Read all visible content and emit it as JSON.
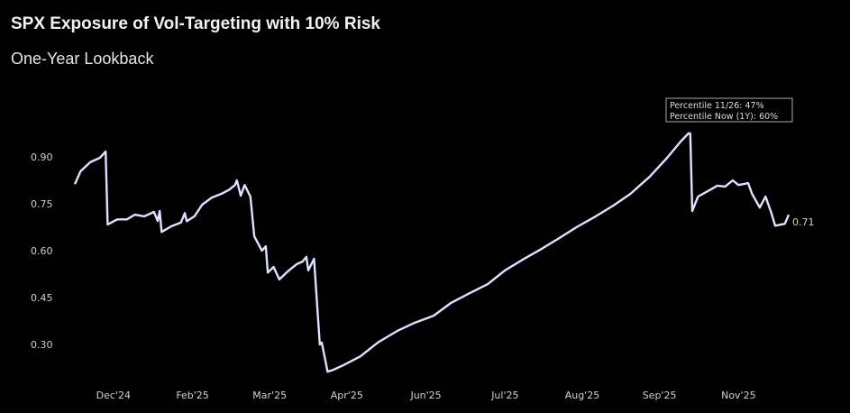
{
  "chart_data": {
    "type": "line",
    "title": "SPX Exposure of Vol-Targeting with 10% Risk",
    "subtitle": "One-Year Lookback",
    "xlabel": "",
    "ylabel": "",
    "ylim": [
      0.18,
      1.0
    ],
    "xlim": [
      0,
      370
    ],
    "grid": false,
    "line_color": "#dfe2ff",
    "y_ticks": [
      0.9,
      0.75,
      0.6,
      0.45,
      0.3
    ],
    "y_tick_labels": [
      "0.90",
      "0.75",
      "0.60",
      "0.45",
      "0.30"
    ],
    "x_ticks": [
      {
        "day": 20,
        "label": "Dec'24"
      },
      {
        "day": 61,
        "label": "Feb'25"
      },
      {
        "day": 101,
        "label": "Mar'25"
      },
      {
        "day": 141,
        "label": "Apr'25"
      },
      {
        "day": 182,
        "label": "Jun'25"
      },
      {
        "day": 223,
        "label": "Jul'25"
      },
      {
        "day": 263,
        "label": "Aug'25"
      },
      {
        "day": 303,
        "label": "Sep'25"
      },
      {
        "day": 344,
        "label": "Nov'25"
      }
    ],
    "series": [
      {
        "name": "SPX Exposure",
        "points": [
          [
            0,
            0.813
          ],
          [
            3,
            0.854
          ],
          [
            8,
            0.883
          ],
          [
            13,
            0.897
          ],
          [
            16,
            0.917
          ],
          [
            17,
            0.684
          ],
          [
            22,
            0.7
          ],
          [
            27,
            0.7
          ],
          [
            31,
            0.715
          ],
          [
            36,
            0.71
          ],
          [
            41,
            0.724
          ],
          [
            43,
            0.695
          ],
          [
            44,
            0.727
          ],
          [
            45,
            0.66
          ],
          [
            50,
            0.678
          ],
          [
            55,
            0.69
          ],
          [
            57,
            0.72
          ],
          [
            58,
            0.694
          ],
          [
            62,
            0.71
          ],
          [
            66,
            0.747
          ],
          [
            71,
            0.77
          ],
          [
            76,
            0.782
          ],
          [
            80,
            0.795
          ],
          [
            83,
            0.81
          ],
          [
            84,
            0.825
          ],
          [
            86,
            0.776
          ],
          [
            88,
            0.81
          ],
          [
            91,
            0.773
          ],
          [
            93,
            0.646
          ],
          [
            97,
            0.6
          ],
          [
            99,
            0.614
          ],
          [
            100,
            0.53
          ],
          [
            103,
            0.548
          ],
          [
            106,
            0.508
          ],
          [
            111,
            0.537
          ],
          [
            115,
            0.557
          ],
          [
            118,
            0.565
          ],
          [
            120,
            0.58
          ],
          [
            121,
            0.537
          ],
          [
            124,
            0.574
          ],
          [
            127,
            0.3
          ],
          [
            128,
            0.306
          ],
          [
            131,
            0.213
          ],
          [
            134,
            0.219
          ],
          [
            139,
            0.233
          ],
          [
            148,
            0.262
          ],
          [
            157,
            0.306
          ],
          [
            167,
            0.343
          ],
          [
            176,
            0.369
          ],
          [
            186,
            0.392
          ],
          [
            195,
            0.433
          ],
          [
            204,
            0.462
          ],
          [
            214,
            0.493
          ],
          [
            223,
            0.537
          ],
          [
            232,
            0.571
          ],
          [
            242,
            0.606
          ],
          [
            251,
            0.64
          ],
          [
            260,
            0.675
          ],
          [
            270,
            0.71
          ],
          [
            279,
            0.744
          ],
          [
            288,
            0.782
          ],
          [
            298,
            0.837
          ],
          [
            307,
            0.897
          ],
          [
            314,
            0.949
          ],
          [
            318,
            0.975
          ],
          [
            319,
            0.975
          ],
          [
            320,
            0.727
          ],
          [
            323,
            0.773
          ],
          [
            328,
            0.79
          ],
          [
            333,
            0.808
          ],
          [
            337,
            0.805
          ],
          [
            341,
            0.825
          ],
          [
            344,
            0.81
          ],
          [
            349,
            0.816
          ],
          [
            351,
            0.782
          ],
          [
            355,
            0.738
          ],
          [
            358,
            0.773
          ],
          [
            361,
            0.721
          ],
          [
            363,
            0.68
          ],
          [
            368,
            0.686
          ],
          [
            370,
            0.715
          ]
        ]
      }
    ],
    "end_label": "0.71",
    "legend": {
      "position": "top-right",
      "entries": [
        "Percentile 11/26: 47%",
        "Percentile Now (1Y): 60%"
      ]
    }
  }
}
